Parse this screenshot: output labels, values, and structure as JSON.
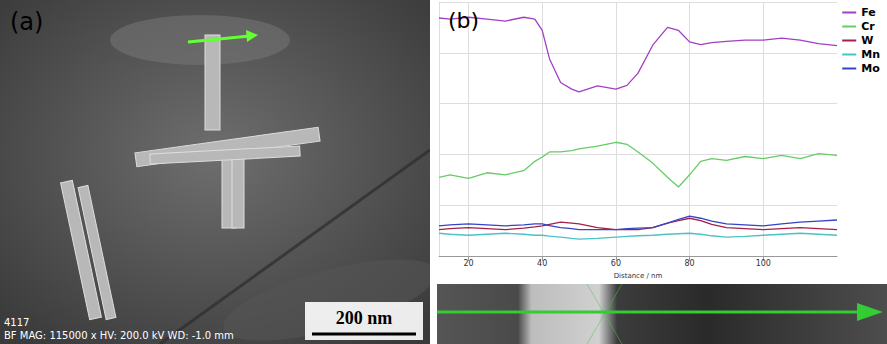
{
  "image_panel": {
    "label": "(a)",
    "scale_bar": "200 nm",
    "info_lines": [
      "4117",
      "BF  MAG: 115000 x  HV: 200.0 kV  WD: -1.0 mm"
    ]
  },
  "chart_data": {
    "type": "line",
    "title": "(b)",
    "xlabel": "Distance / nm",
    "x": [
      12,
      15,
      20,
      25,
      30,
      35,
      38,
      40,
      42,
      45,
      48,
      50,
      55,
      60,
      63,
      66,
      70,
      74,
      77,
      80,
      83,
      86,
      90,
      95,
      100,
      105,
      110,
      115,
      120
    ],
    "series": [
      {
        "name": "Fe",
        "color": "#a23fc4",
        "values": [
          93.7,
          93.3,
          94,
          93.3,
          92.5,
          94,
          93.3,
          88.8,
          77.6,
          68.3,
          65.7,
          64.6,
          67,
          65.7,
          67.2,
          72,
          83,
          90,
          88.8,
          84.3,
          83.2,
          84,
          84.5,
          85,
          85,
          85.8,
          85,
          83.6,
          82.8
        ]
      },
      {
        "name": "Cr",
        "color": "#66cc66",
        "values": [
          31,
          32,
          30.6,
          32.8,
          32,
          33.6,
          37.3,
          39,
          41,
          41,
          41.5,
          42.2,
          43.3,
          44.8,
          44,
          41,
          36.6,
          31,
          27.2,
          32,
          37.3,
          38.4,
          37.7,
          39.2,
          38.4,
          39.6,
          38.4,
          40.3,
          39.6
        ]
      },
      {
        "name": "W",
        "color": "#a3204a",
        "values": [
          10.4,
          10.8,
          11.2,
          10.8,
          10.4,
          11,
          11.5,
          11.9,
          12.5,
          13.4,
          13,
          12.7,
          11.2,
          10.4,
          10.4,
          10.4,
          11.2,
          13,
          14,
          14.9,
          14,
          12.5,
          11.2,
          10.8,
          10.4,
          10.8,
          11.2,
          10.8,
          10.4
        ]
      },
      {
        "name": "Mn",
        "color": "#4cc2c2",
        "values": [
          9,
          8.6,
          8.2,
          8.6,
          9,
          8.6,
          8.2,
          8.2,
          7.9,
          7.5,
          7,
          6.7,
          7,
          7.5,
          7.8,
          8,
          8.2,
          8.6,
          8.8,
          9,
          8.6,
          8,
          7.5,
          7.8,
          8.2,
          8.6,
          9,
          8.6,
          8.2
        ]
      },
      {
        "name": "Mo",
        "color": "#3344c4",
        "values": [
          11.9,
          12.3,
          12.7,
          12.3,
          11.9,
          12.3,
          12.7,
          12.7,
          12,
          11.2,
          10.8,
          10.4,
          10.4,
          10.4,
          10.8,
          11,
          11.2,
          13,
          14.5,
          15.7,
          14.9,
          13.8,
          12.7,
          12.3,
          11.9,
          12.7,
          13.4,
          13.8,
          14.2
        ]
      }
    ],
    "xlim": [
      12,
      120
    ],
    "xticks": [
      20,
      40,
      60,
      80,
      100
    ],
    "ylim": [
      0,
      100
    ],
    "yticks": [
      0,
      20,
      40,
      60,
      80,
      100
    ],
    "grid": true,
    "legend": "upper right",
    "tick_labels": "x"
  }
}
